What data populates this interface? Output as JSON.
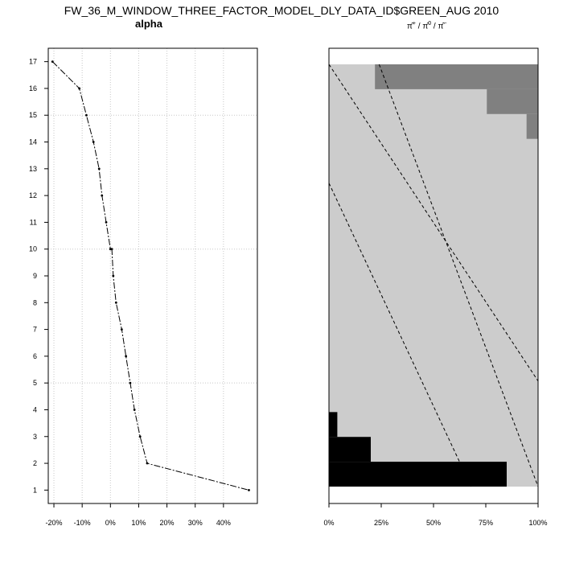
{
  "title": "FW_36_M_WINDOW_THREE_FACTOR_MODEL_DLY_DATA_ID$GREEN_AUG 2010",
  "chart_data": [
    {
      "type": "line",
      "title": "alpha",
      "x": [
        -20.5,
        -11,
        -8.5,
        -6,
        -4,
        -3,
        -1.5,
        0,
        0.5,
        1,
        2,
        4,
        5.5,
        7,
        8.5,
        10.5,
        13,
        49
      ],
      "y": [
        17,
        16,
        15,
        14,
        13,
        12,
        11,
        10,
        10,
        9,
        8,
        7,
        6,
        5,
        4,
        3,
        2,
        1
      ],
      "xlim": [
        -22,
        52
      ],
      "ylim": [
        0.5,
        17.5
      ],
      "xticks": [
        -20,
        -10,
        0,
        10,
        20,
        30,
        40
      ],
      "xtick_labels": [
        "-20%",
        "-10%",
        "0%",
        "10%",
        "20%",
        "30%",
        "40%"
      ],
      "yticks": [
        1,
        2,
        3,
        4,
        5,
        6,
        7,
        8,
        9,
        10,
        11,
        12,
        13,
        14,
        15,
        16,
        17
      ],
      "grid": true
    },
    {
      "type": "area",
      "title_parts": [
        "π̂",
        "+",
        " / ",
        "π̂",
        "0",
        " / ",
        "π̂",
        "−"
      ],
      "xlim": [
        0,
        100
      ],
      "ylim": [
        0.5,
        17.5
      ],
      "xticks": [
        0,
        25,
        50,
        75,
        100
      ],
      "xtick_labels": [
        "0%",
        "25%",
        "50%",
        "75%",
        "100%"
      ],
      "rows": [
        {
          "y": 1,
          "black": 85,
          "dark": 0
        },
        {
          "y": 2,
          "black": 20,
          "dark": 0
        },
        {
          "y": 3,
          "black": 4,
          "dark": 0
        },
        {
          "y": 16,
          "black": 0,
          "dark": 23.5
        },
        {
          "y": 17,
          "black": 0,
          "dark": 78
        }
      ],
      "dark_top_start": 22,
      "dark_steps": [
        {
          "y_top": 17,
          "y_bottom": 15.5,
          "x_start": 22
        },
        {
          "y_top": 15.5,
          "y_bottom": 14.5,
          "x_start": 75.5
        },
        {
          "y_top": 14.5,
          "y_bottom": 14.5,
          "x_start": 94.5
        }
      ],
      "dashed_lines": [
        {
          "x0": 0,
          "y0": 17,
          "x1": 100,
          "y1": 5
        },
        {
          "x0": 0,
          "y0": 12.5,
          "x1": 68,
          "y1": 1
        },
        {
          "x0": 24,
          "y0": 17,
          "x1": 100,
          "y1": 1
        }
      ],
      "colors": {
        "black": "#000000",
        "light": "#cccccc",
        "dark": "#808080"
      }
    }
  ]
}
